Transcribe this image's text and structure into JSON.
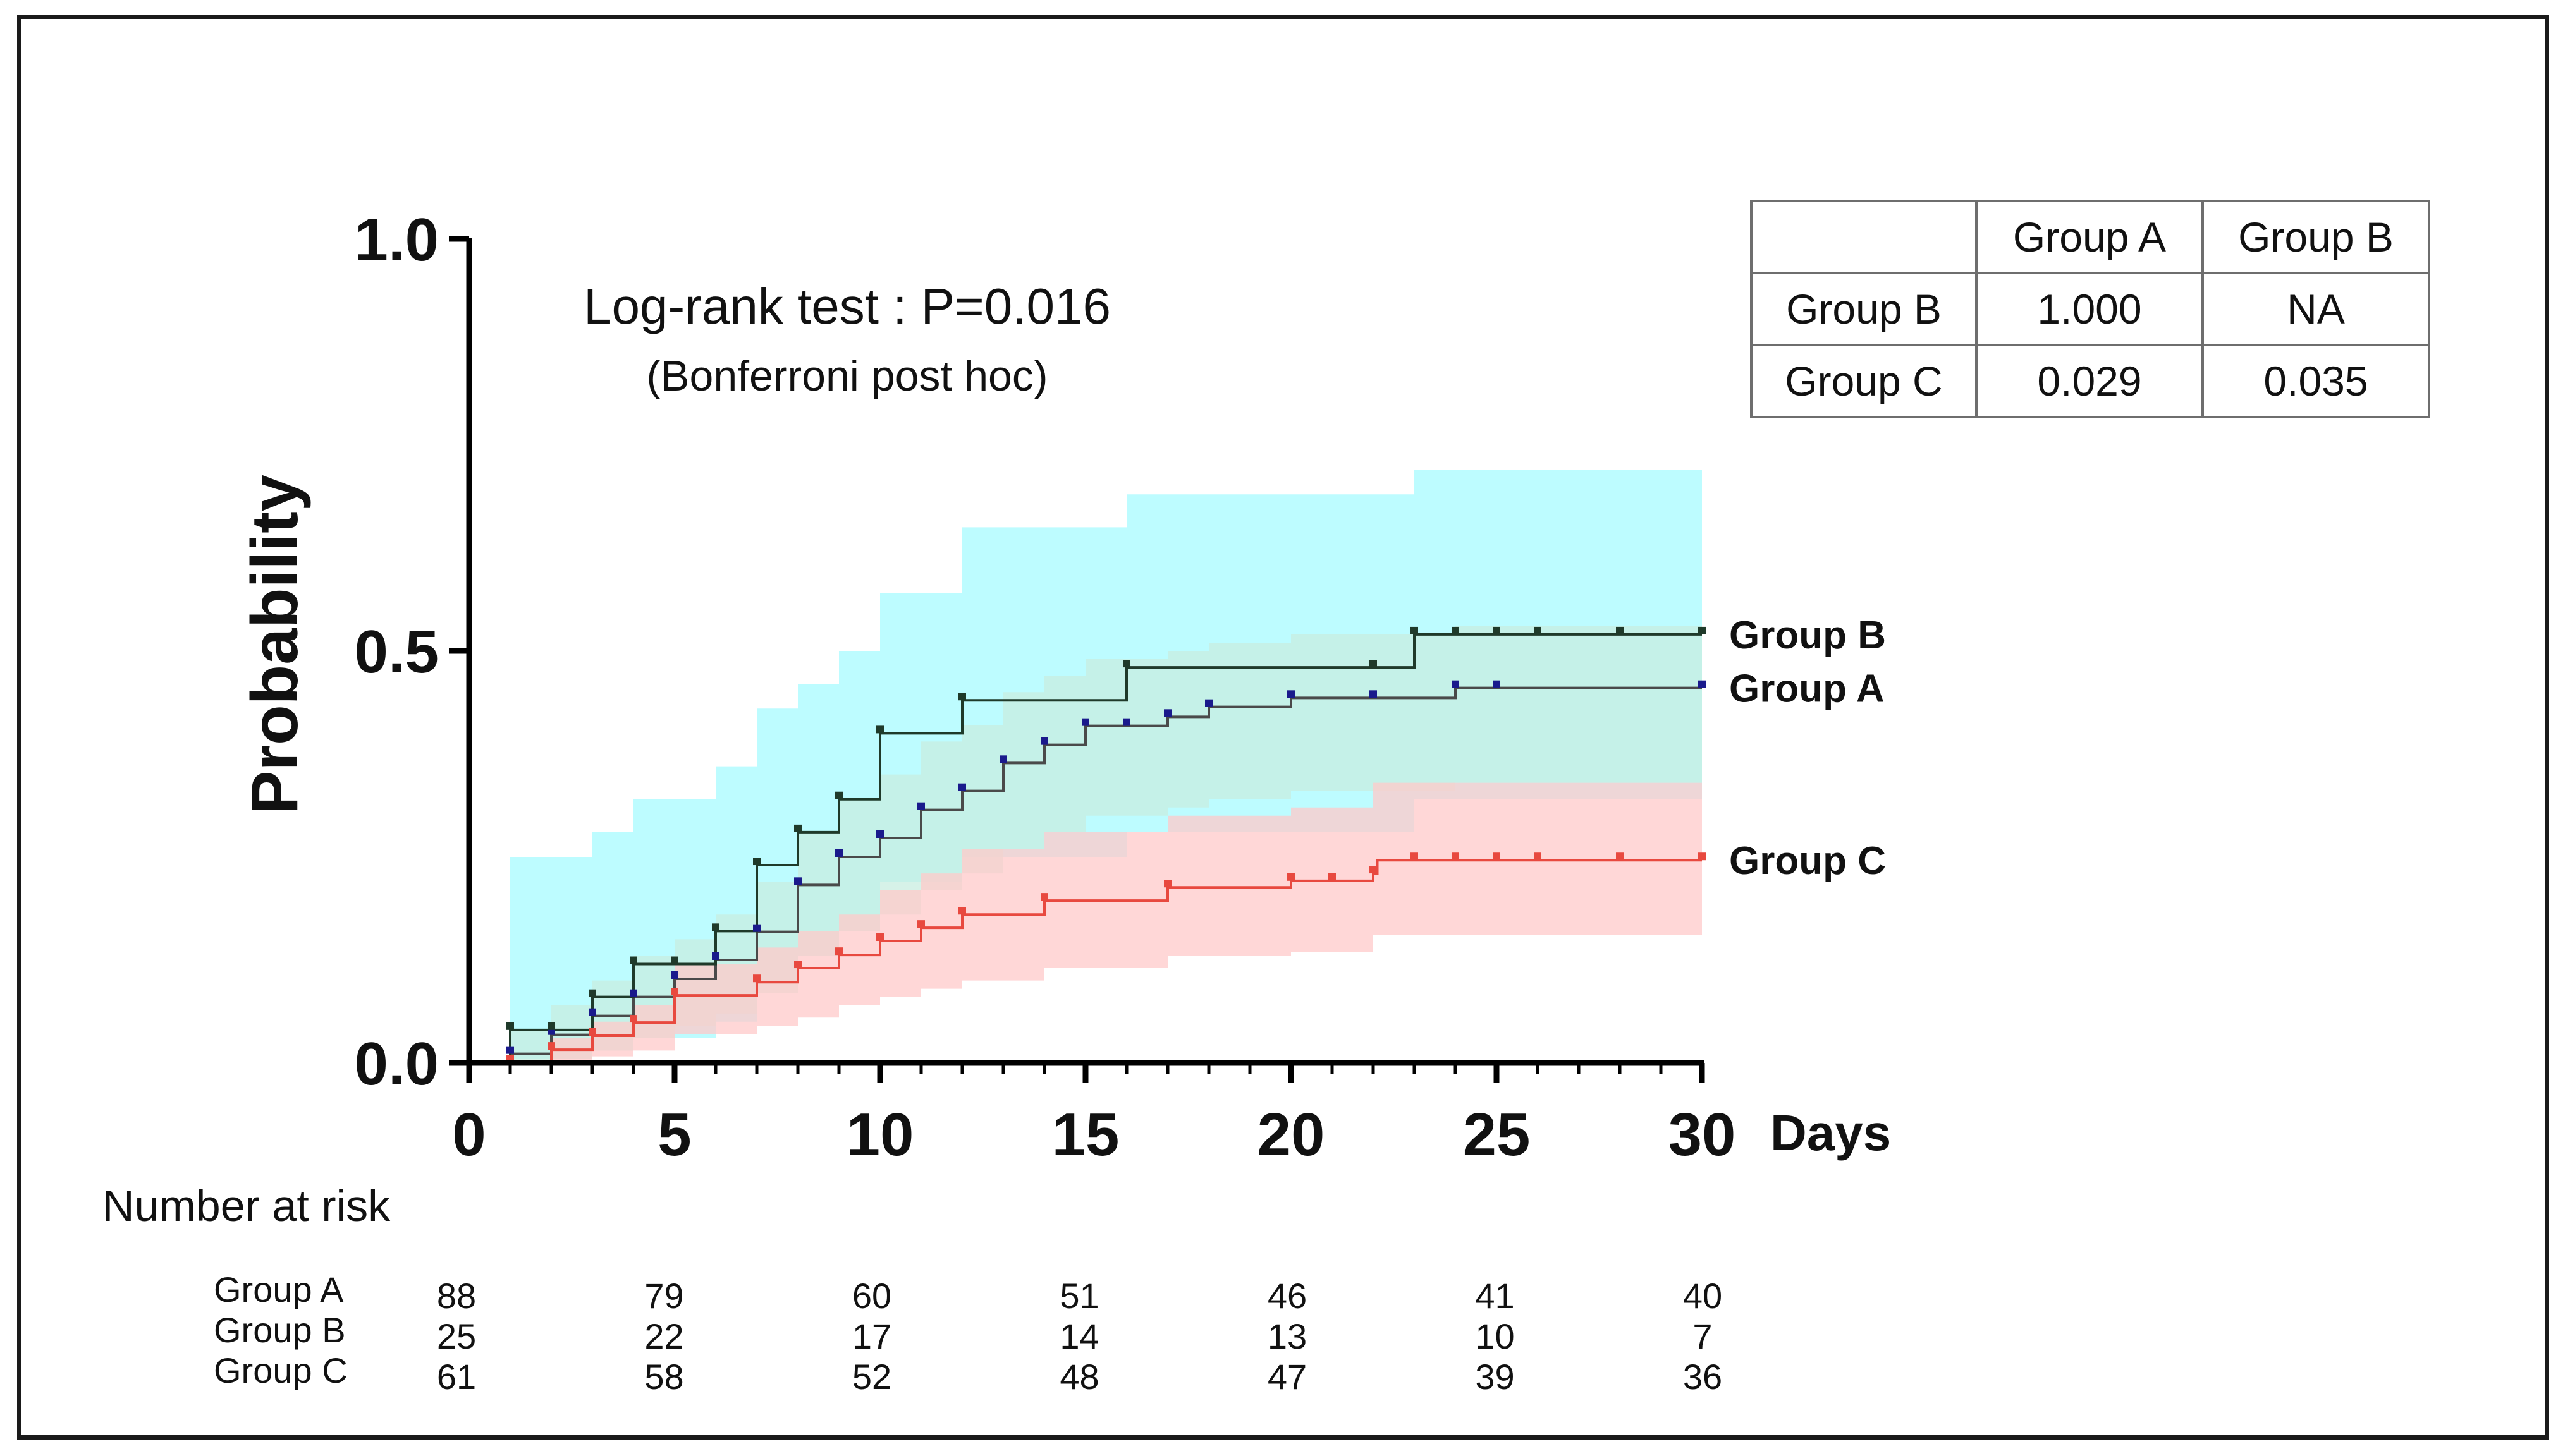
{
  "chart_data": {
    "type": "line",
    "subtype": "kaplan-meier-cumulative-incidence",
    "title": "Log-rank test : P=0.016",
    "subtitle": "(Bonferroni post hoc)",
    "xlabel": "Days",
    "ylabel": "Probability",
    "xlim": [
      0,
      30
    ],
    "ylim": [
      0,
      1
    ],
    "x_ticks": [
      0,
      5,
      10,
      15,
      20,
      25,
      30
    ],
    "x_tick_labels": [
      "0",
      "5",
      "10",
      "15",
      "20",
      "25",
      "30"
    ],
    "y_ticks": [
      0,
      0.5,
      1
    ],
    "y_tick_labels": [
      "0.0",
      "0.5",
      "1.0"
    ],
    "grid": false,
    "series": [
      {
        "name": "Group A",
        "label": "Group A",
        "color": "#4a4a4a",
        "marker_color": "#1a1a8c",
        "band_color": "#c8ede0",
        "band_opacity": 0.75,
        "steps": [
          [
            0,
            0
          ],
          [
            1,
            0.011
          ],
          [
            2,
            0.034
          ],
          [
            3,
            0.057
          ],
          [
            4,
            0.08
          ],
          [
            5,
            0.102
          ],
          [
            6,
            0.125
          ],
          [
            7,
            0.159
          ],
          [
            8,
            0.216
          ],
          [
            9,
            0.25
          ],
          [
            10,
            0.273
          ],
          [
            11,
            0.307
          ],
          [
            12,
            0.33
          ],
          [
            13,
            0.364
          ],
          [
            14,
            0.386
          ],
          [
            15,
            0.409
          ],
          [
            17,
            0.42
          ],
          [
            18,
            0.432
          ],
          [
            20,
            0.443
          ],
          [
            22,
            0.443
          ],
          [
            24,
            0.455
          ],
          [
            30,
            0.455
          ]
        ],
        "censor_x": [
          1,
          2,
          3,
          4,
          5,
          6,
          7,
          8,
          9,
          10,
          11,
          12,
          13,
          14,
          15,
          16,
          17,
          18,
          20,
          22,
          24,
          25,
          30
        ],
        "ci_steps": [
          [
            0,
            0,
            0
          ],
          [
            1,
            0,
            0.04
          ],
          [
            2,
            0.005,
            0.07
          ],
          [
            3,
            0.015,
            0.1
          ],
          [
            4,
            0.03,
            0.13
          ],
          [
            5,
            0.045,
            0.15
          ],
          [
            6,
            0.06,
            0.18
          ],
          [
            7,
            0.085,
            0.22
          ],
          [
            8,
            0.13,
            0.28
          ],
          [
            9,
            0.16,
            0.32
          ],
          [
            10,
            0.18,
            0.35
          ],
          [
            11,
            0.21,
            0.39
          ],
          [
            12,
            0.23,
            0.41
          ],
          [
            13,
            0.26,
            0.45
          ],
          [
            14,
            0.28,
            0.47
          ],
          [
            15,
            0.3,
            0.49
          ],
          [
            17,
            0.31,
            0.5
          ],
          [
            18,
            0.32,
            0.51
          ],
          [
            20,
            0.33,
            0.52
          ],
          [
            24,
            0.34,
            0.53
          ],
          [
            30,
            0.34,
            0.53
          ]
        ]
      },
      {
        "name": "Group B",
        "label": "Group B",
        "color": "#1f3a2a",
        "marker_color": "#1f3a2a",
        "band_color": "#b2fbff",
        "band_opacity": 0.85,
        "steps": [
          [
            0,
            0
          ],
          [
            1,
            0.04
          ],
          [
            2,
            0.04
          ],
          [
            3,
            0.08
          ],
          [
            4,
            0.12
          ],
          [
            6,
            0.16
          ],
          [
            7,
            0.24
          ],
          [
            8,
            0.28
          ],
          [
            9,
            0.32
          ],
          [
            10,
            0.4
          ],
          [
            12,
            0.44
          ],
          [
            16,
            0.48
          ],
          [
            23,
            0.52
          ],
          [
            30,
            0.52
          ]
        ],
        "censor_x": [
          1,
          2,
          3,
          4,
          5,
          6,
          7,
          8,
          9,
          10,
          12,
          16,
          22,
          23,
          24,
          25,
          26,
          28,
          30
        ],
        "ci_steps": [
          [
            0,
            0,
            0
          ],
          [
            1,
            0.005,
            0.25
          ],
          [
            2,
            0.005,
            0.25
          ],
          [
            3,
            0.015,
            0.28
          ],
          [
            4,
            0.03,
            0.32
          ],
          [
            6,
            0.05,
            0.36
          ],
          [
            7,
            0.1,
            0.43
          ],
          [
            8,
            0.13,
            0.46
          ],
          [
            9,
            0.16,
            0.5
          ],
          [
            10,
            0.22,
            0.57
          ],
          [
            12,
            0.25,
            0.65
          ],
          [
            16,
            0.28,
            0.69
          ],
          [
            23,
            0.32,
            0.72
          ],
          [
            30,
            0.32,
            0.72
          ]
        ]
      },
      {
        "name": "Group C",
        "label": "Group C",
        "color": "#e8493f",
        "marker_color": "#e8493f",
        "band_color": "#ffcaca",
        "band_opacity": 0.75,
        "steps": [
          [
            0,
            0
          ],
          [
            2,
            0.016
          ],
          [
            3,
            0.033
          ],
          [
            4,
            0.049
          ],
          [
            5,
            0.082
          ],
          [
            7,
            0.098
          ],
          [
            8,
            0.115
          ],
          [
            9,
            0.131
          ],
          [
            10,
            0.148
          ],
          [
            11,
            0.164
          ],
          [
            12,
            0.18
          ],
          [
            14,
            0.197
          ],
          [
            17,
            0.213
          ],
          [
            20,
            0.221
          ],
          [
            22,
            0.23
          ],
          [
            22.1,
            0.246
          ],
          [
            30,
            0.246
          ]
        ],
        "censor_x": [
          1,
          2,
          3,
          4,
          5,
          7,
          8,
          9,
          10,
          11,
          12,
          14,
          17,
          20,
          21,
          22,
          23,
          24,
          25,
          26,
          28,
          30
        ],
        "ci_steps": [
          [
            0,
            0,
            0
          ],
          [
            2,
            0.002,
            0.03
          ],
          [
            3,
            0.008,
            0.05
          ],
          [
            4,
            0.015,
            0.07
          ],
          [
            5,
            0.035,
            0.12
          ],
          [
            7,
            0.045,
            0.14
          ],
          [
            8,
            0.055,
            0.16
          ],
          [
            9,
            0.07,
            0.18
          ],
          [
            10,
            0.08,
            0.21
          ],
          [
            11,
            0.09,
            0.23
          ],
          [
            12,
            0.1,
            0.26
          ],
          [
            14,
            0.115,
            0.28
          ],
          [
            17,
            0.13,
            0.3
          ],
          [
            20,
            0.135,
            0.31
          ],
          [
            22,
            0.155,
            0.34
          ],
          [
            30,
            0.155,
            0.34
          ]
        ]
      }
    ],
    "number_at_risk": {
      "title": "Number at risk",
      "times": [
        0,
        5,
        10,
        15,
        20,
        25,
        30
      ],
      "rows": [
        {
          "name": "Group A",
          "values": [
            "88",
            "79",
            "60",
            "51",
            "46",
            "41",
            "40"
          ]
        },
        {
          "name": "Group B",
          "values": [
            "25",
            "22",
            "17",
            "14",
            "13",
            "10",
            "7"
          ]
        },
        {
          "name": "Group C",
          "values": [
            "61",
            "58",
            "52",
            "48",
            "47",
            "39",
            "36"
          ]
        }
      ]
    },
    "pairwise_table": {
      "header": [
        "",
        "Group A",
        "Group B"
      ],
      "rows": [
        [
          "Group B",
          "1.000",
          "NA"
        ],
        [
          "Group C",
          "0.029",
          "0.035"
        ]
      ]
    }
  }
}
